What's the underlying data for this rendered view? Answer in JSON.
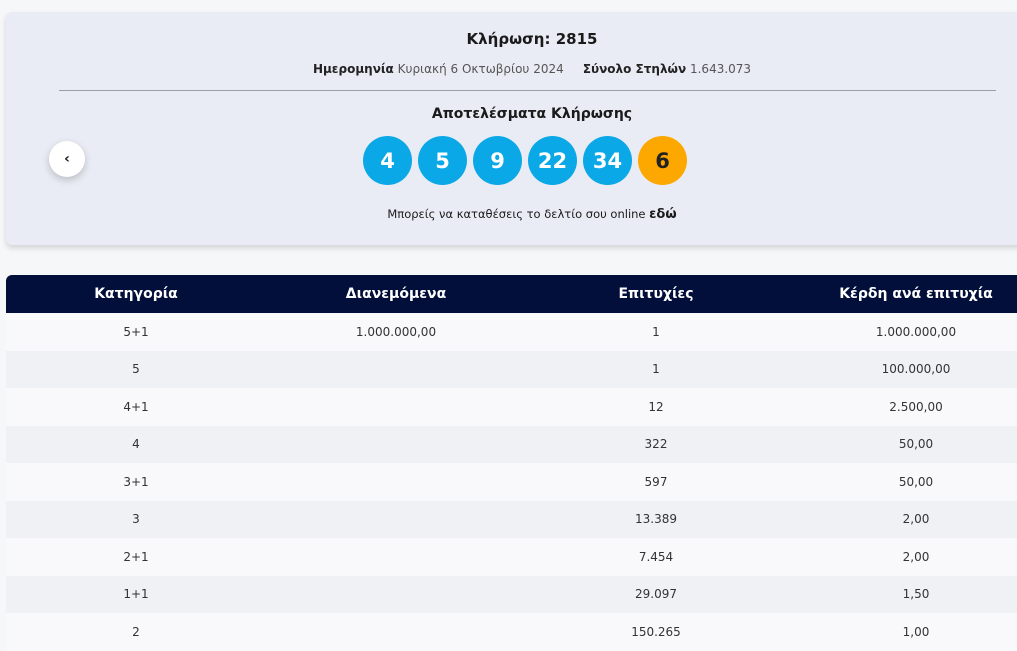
{
  "draw": {
    "title": "Κλήρωση: 2815",
    "date_label": "Ημερομηνία",
    "date": "Κυριακή 6 Οκτωβρίου 2024",
    "total_label": "Σύνολο Στηλών",
    "total": "1.643.073"
  },
  "results": {
    "heading": "Αποτελέσματα Κλήρωσης",
    "numbers": [
      "4",
      "5",
      "9",
      "22",
      "34"
    ],
    "bonus": "6",
    "colors": {
      "main": "#0aa8e6",
      "bonus": "#fca800"
    }
  },
  "online": {
    "text": "Μπορείς να καταθέσεις το δελτίο σου online",
    "link": "εδώ"
  },
  "nav": {
    "prev_icon": "chevron-left-icon",
    "prev_glyph": "‹"
  },
  "table": {
    "headers": [
      "Κατηγορία",
      "Διανεμόμενα",
      "Επιτυχίες",
      "Κέρδη ανά επιτυχία"
    ],
    "rows": [
      [
        "5+1",
        "1.000.000,00",
        "1",
        "1.000.000,00"
      ],
      [
        "5",
        "",
        "1",
        "100.000,00"
      ],
      [
        "4+1",
        "",
        "12",
        "2.500,00"
      ],
      [
        "4",
        "",
        "322",
        "50,00"
      ],
      [
        "3+1",
        "",
        "597",
        "50,00"
      ],
      [
        "3",
        "",
        "13.389",
        "2,00"
      ],
      [
        "2+1",
        "",
        "7.454",
        "2,00"
      ],
      [
        "1+1",
        "",
        "29.097",
        "1,50"
      ],
      [
        "2",
        "",
        "150.265",
        "1,00"
      ]
    ]
  }
}
